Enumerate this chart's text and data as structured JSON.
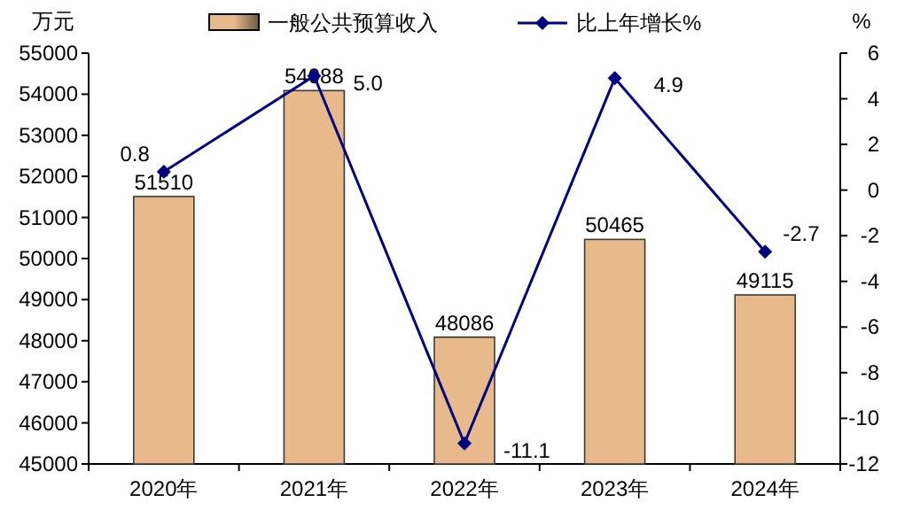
{
  "chart_data": {
    "type": "bar",
    "ylabel": "万元",
    "y2label": "%",
    "categories": [
      "2020年",
      "2021年",
      "2022年",
      "2023年",
      "2024年"
    ],
    "series": [
      {
        "name": "一般公共预算收入",
        "color": "#e8b98a",
        "values": [
          51510,
          54088,
          48086,
          50465,
          49115
        ]
      },
      {
        "name": "比上年增长%",
        "type": "line",
        "axis": "y2",
        "color": "#000080",
        "marker": "diamond",
        "values": [
          0.8,
          5.0,
          -11.1,
          4.9,
          -2.7
        ],
        "value_labels": [
          "0.8",
          "5.0",
          "-11.1",
          "4.9",
          "-2.7"
        ]
      }
    ],
    "ylim": [
      45000,
      55000
    ],
    "yticks": [
      45000,
      46000,
      47000,
      48000,
      49000,
      50000,
      51000,
      52000,
      53000,
      54000,
      55000
    ],
    "y2lim": [
      -12,
      6
    ],
    "y2ticks": [
      -12,
      -10,
      -8,
      -6,
      -4,
      -2,
      0,
      2,
      4,
      6
    ],
    "data_labels": true,
    "legend": "top",
    "grid": false
  }
}
